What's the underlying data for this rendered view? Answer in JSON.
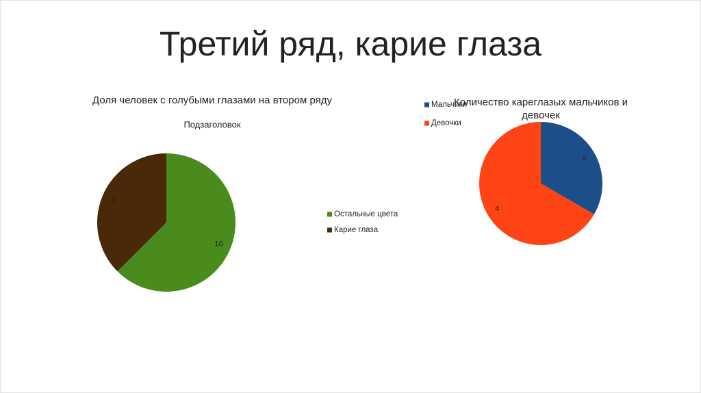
{
  "title": "Третий ряд, карие глаза",
  "chart_data": [
    {
      "type": "pie",
      "title": "Доля человек с голубыми глазами на втором ряду",
      "subtitle": "Подзаголовок",
      "categories": [
        "Остальные цвета",
        "Карие глаза"
      ],
      "values": [
        10,
        6
      ],
      "colors": [
        "#4a8b1d",
        "#4a2908"
      ],
      "legend": "right"
    },
    {
      "type": "pie",
      "title": "Количество кареглазых мальчиков и девочек",
      "categories": [
        "Мальчики",
        "Девочки"
      ],
      "values": [
        2,
        4
      ],
      "colors": [
        "#1c4e8a",
        "#fe4414"
      ],
      "legend": "top-left"
    }
  ]
}
